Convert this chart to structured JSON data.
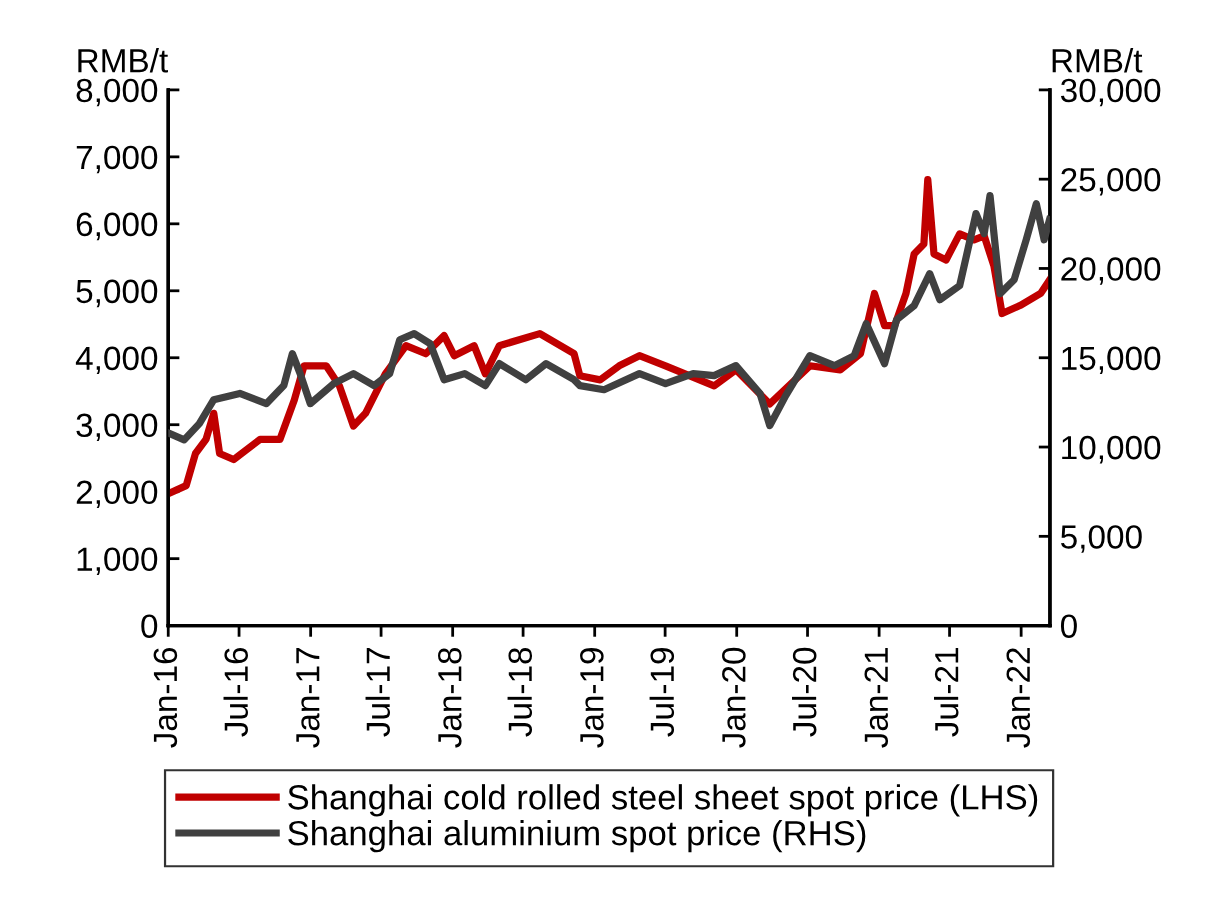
{
  "chart_data": {
    "type": "line",
    "ylabel": "RMB/t",
    "y2label": "RMB/t",
    "xlim": [
      "2016-01-01",
      "2022-03-16"
    ],
    "xticks": [
      {
        "value": "2016-01-01",
        "label": "Jan-16"
      },
      {
        "value": "2016-07-01",
        "label": "Jul-16"
      },
      {
        "value": "2017-01-01",
        "label": "Jan-17"
      },
      {
        "value": "2017-07-01",
        "label": "Jul-17"
      },
      {
        "value": "2018-01-01",
        "label": "Jan-18"
      },
      {
        "value": "2018-07-01",
        "label": "Jul-18"
      },
      {
        "value": "2019-01-01",
        "label": "Jan-19"
      },
      {
        "value": "2019-07-01",
        "label": "Jul-19"
      },
      {
        "value": "2020-01-01",
        "label": "Jan-20"
      },
      {
        "value": "2020-07-01",
        "label": "Jul-20"
      },
      {
        "value": "2021-01-01",
        "label": "Jan-21"
      },
      {
        "value": "2021-07-01",
        "label": "Jul-21"
      },
      {
        "value": "2022-01-01",
        "label": "Jan-22"
      }
    ],
    "ylim": [
      0,
      8000
    ],
    "yticks": [
      0,
      {
        "value": 1000,
        "label": "1,000"
      },
      {
        "value": 2000,
        "label": "2,000"
      },
      {
        "value": 3000,
        "label": "3,000"
      },
      {
        "value": 4000,
        "label": "4,000"
      },
      {
        "value": 5000,
        "label": "5,000"
      },
      {
        "value": 6000,
        "label": "6,000"
      },
      {
        "value": 7000,
        "label": "7,000"
      },
      {
        "value": 8000,
        "label": "8,000"
      }
    ],
    "y2lim": [
      0,
      30000
    ],
    "y2ticks": [
      0,
      {
        "value": 5000,
        "label": "5,000"
      },
      {
        "value": 10000,
        "label": "10,000"
      },
      {
        "value": 15000,
        "label": "15,000"
      },
      {
        "value": 20000,
        "label": "20,000"
      },
      {
        "value": 25000,
        "label": "25,000"
      },
      {
        "value": 30000,
        "label": "30,000"
      }
    ],
    "grid": false,
    "legend": "bottom",
    "marker": "none",
    "line_style": "solid",
    "series": [
      {
        "name": "Shanghai cold rolled steel sheet spot price (LHS)",
        "color": "#c00000",
        "axis": "y",
        "x": [
          "2016-01-05",
          "2016-02-16",
          "2016-03-11",
          "2016-04-07",
          "2016-04-27",
          "2016-05-12",
          "2016-06-17",
          "2016-08-24",
          "2016-10-14",
          "2016-11-20",
          "2016-12-15",
          "2017-02-10",
          "2017-03-16",
          "2017-04-21",
          "2017-05-22",
          "2017-07-12",
          "2017-09-03",
          "2017-10-24",
          "2017-12-10",
          "2018-01-05",
          "2018-02-25",
          "2018-03-26",
          "2018-05-01",
          "2018-08-13",
          "2018-11-09",
          "2018-11-24",
          "2019-01-15",
          "2019-03-05",
          "2019-04-26",
          "2019-07-02",
          "2019-11-04",
          "2019-12-30",
          "2020-03-26",
          "2020-07-07",
          "2020-09-23",
          "2020-11-14",
          "2020-12-20",
          "2021-01-15",
          "2021-02-10",
          "2021-03-11",
          "2021-04-01",
          "2021-04-26",
          "2021-05-06",
          "2021-05-22",
          "2021-06-22",
          "2021-07-27",
          "2021-09-02",
          "2021-09-28",
          "2021-10-23",
          "2021-11-13",
          "2021-12-29",
          "2022-02-20",
          "2022-03-15"
        ],
        "values": [
          1980,
          2090,
          2570,
          2780,
          3170,
          2570,
          2480,
          2780,
          2780,
          3370,
          3880,
          3880,
          3580,
          2980,
          3170,
          3760,
          4180,
          4060,
          4330,
          4030,
          4180,
          3760,
          4180,
          4360,
          4060,
          3730,
          3670,
          3880,
          4030,
          3880,
          3580,
          3820,
          3310,
          3880,
          3820,
          4060,
          4960,
          4480,
          4480,
          4960,
          5550,
          5700,
          6660,
          5550,
          5460,
          5850,
          5760,
          5820,
          5370,
          4660,
          4780,
          4960,
          5160
        ]
      },
      {
        "name": "Shanghai aluminium spot price (RHS)",
        "color": "#404040",
        "axis": "y2",
        "x": [
          "2016-01-05",
          "2016-02-11",
          "2016-03-21",
          "2016-04-27",
          "2016-07-03",
          "2016-09-09",
          "2016-10-24",
          "2016-11-15",
          "2016-12-05",
          "2016-12-31",
          "2017-03-01",
          "2017-04-21",
          "2017-06-13",
          "2017-07-23",
          "2017-08-18",
          "2017-09-24",
          "2017-11-04",
          "2017-12-10",
          "2018-02-01",
          "2018-03-26",
          "2018-05-01",
          "2018-07-08",
          "2018-08-29",
          "2018-11-09",
          "2018-11-24",
          "2019-01-25",
          "2019-04-26",
          "2019-07-02",
          "2019-09-11",
          "2019-11-04",
          "2019-12-30",
          "2020-03-01",
          "2020-03-26",
          "2020-05-06",
          "2020-07-07",
          "2020-09-08",
          "2020-10-29",
          "2020-11-29",
          "2021-01-15",
          "2021-02-15",
          "2021-04-01",
          "2021-05-11",
          "2021-06-06",
          "2021-07-27",
          "2021-09-07",
          "2021-09-28",
          "2021-10-13",
          "2021-11-08",
          "2021-12-14",
          "2022-01-14",
          "2022-02-09",
          "2022-03-01",
          "2022-03-15"
        ],
        "values": [
          10750,
          10400,
          11310,
          12650,
          13000,
          12430,
          13440,
          15230,
          14110,
          12430,
          13550,
          14110,
          13440,
          14110,
          16010,
          16350,
          15790,
          13770,
          14110,
          13440,
          14670,
          13770,
          14670,
          13770,
          13440,
          13210,
          14110,
          13550,
          14110,
          14000,
          14560,
          12990,
          11200,
          12880,
          15120,
          14560,
          15120,
          16910,
          14670,
          17130,
          17920,
          19710,
          18250,
          19040,
          23070,
          21950,
          24080,
          18590,
          19370,
          21610,
          23630,
          21610,
          22730
        ]
      }
    ]
  }
}
